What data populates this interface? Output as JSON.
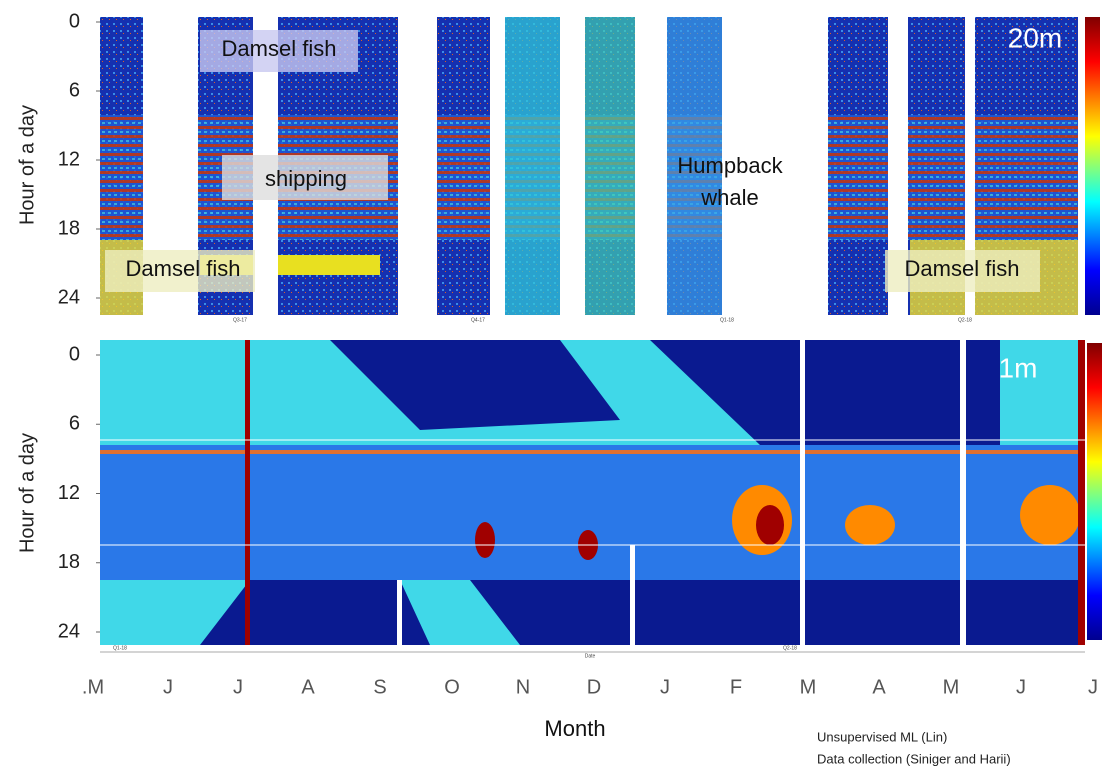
{
  "chart_data": [
    {
      "type": "heatmap",
      "ylabel": "Hour of a day",
      "ylim": [
        0,
        24
      ],
      "yticks": [
        0,
        6,
        12,
        18,
        24
      ],
      "depth_label": "20m",
      "annotations": [
        "Damsel fish",
        "shipping",
        "Humpback whale",
        "Damsel fish",
        "Damsel fish"
      ],
      "quarter_labels": [
        "Q3-17",
        "Q4-17",
        "Q1-18",
        "Q2-18"
      ]
    },
    {
      "type": "heatmap",
      "ylabel": "Hour of a day",
      "ylim": [
        0,
        24
      ],
      "yticks": [
        0,
        6,
        12,
        18,
        24
      ],
      "depth_label": "1m",
      "quarter_labels": [
        "Q1-18",
        "Q2-18"
      ],
      "date_label": "Date",
      "xlabel": "Month",
      "categories": [
        ".M",
        "J",
        "J",
        "A",
        "S",
        "O",
        "N",
        "D",
        "J",
        "F",
        "M",
        "A",
        "M",
        "J",
        "J"
      ],
      "notes": [
        "Unsupervised ML (Lin)",
        "Data collection (Siniger and Harii)"
      ]
    }
  ]
}
